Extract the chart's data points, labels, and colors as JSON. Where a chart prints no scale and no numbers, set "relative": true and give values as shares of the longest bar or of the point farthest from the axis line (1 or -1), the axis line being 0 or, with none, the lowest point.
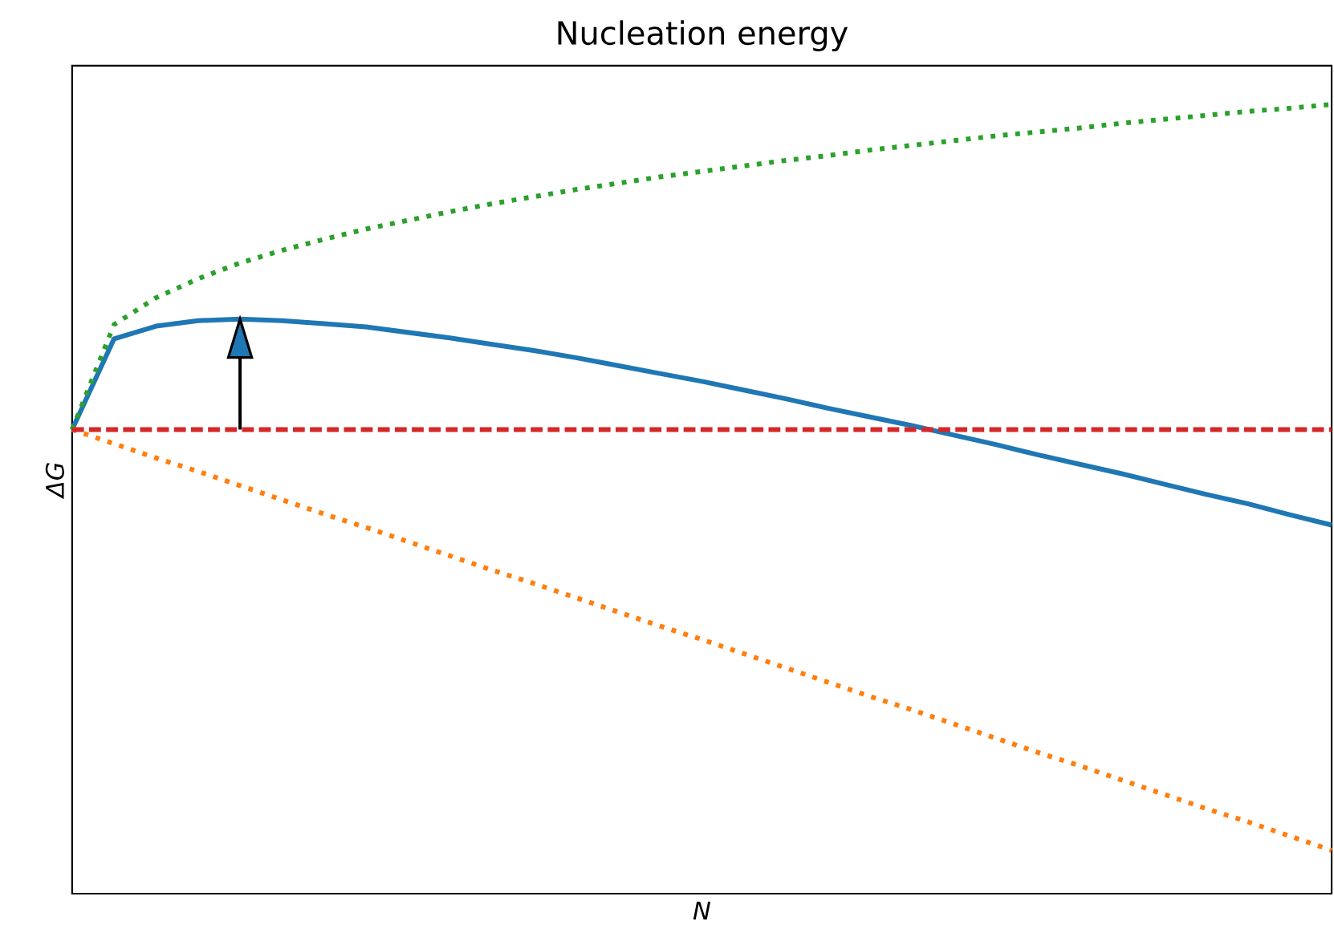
{
  "chart_data": {
    "type": "line",
    "title": "Nucleation energy",
    "xlabel": "N",
    "ylabel": "ΔG",
    "relative": true,
    "categories": [
      null,
      null,
      null,
      null,
      null,
      null,
      null,
      null,
      null,
      null,
      null,
      null,
      null,
      null,
      null,
      null,
      null,
      null,
      null,
      null,
      null,
      null,
      null,
      null,
      null,
      null,
      null,
      null,
      null,
      null,
      null
    ],
    "series": [
      {
        "color": "#1f77b4",
        "line_style": "solid",
        "values": [
          0.588,
          0.703,
          0.719,
          0.726,
          0.728,
          0.726,
          0.722,
          0.718,
          0.711,
          0.704,
          0.696,
          0.688,
          0.679,
          0.669,
          0.659,
          0.649,
          0.638,
          0.627,
          0.615,
          0.604,
          0.593,
          0.581,
          0.569,
          0.556,
          0.544,
          0.532,
          0.519,
          0.506,
          0.494,
          0.48,
          0.467
        ]
      },
      {
        "color": "#ff7f0e",
        "line_style": "dotted",
        "values": [
          0.588,
          0.57,
          0.552,
          0.535,
          0.517,
          0.499,
          0.481,
          0.464,
          0.446,
          0.428,
          0.41,
          0.393,
          0.375,
          0.357,
          0.339,
          0.322,
          0.304,
          0.286,
          0.268,
          0.25,
          0.233,
          0.215,
          0.197,
          0.179,
          0.162,
          0.144,
          0.126,
          0.108,
          0.091,
          0.073,
          0.055
        ]
      },
      {
        "color": "#2ca02c",
        "line_style": "dotted",
        "values": [
          0.588,
          0.721,
          0.755,
          0.779,
          0.799,
          0.815,
          0.829,
          0.842,
          0.853,
          0.864,
          0.874,
          0.883,
          0.892,
          0.9,
          0.908,
          0.915,
          0.922,
          0.929,
          0.935,
          0.942,
          0.948,
          0.954,
          0.96,
          0.965,
          0.97,
          0.976,
          0.981,
          0.986,
          0.991,
          0.995,
          1.0
        ]
      }
    ],
    "ref_lines": [
      {
        "axis": "y",
        "value": 0.588,
        "color": "#d62728",
        "line_style": "dashed"
      }
    ]
  }
}
